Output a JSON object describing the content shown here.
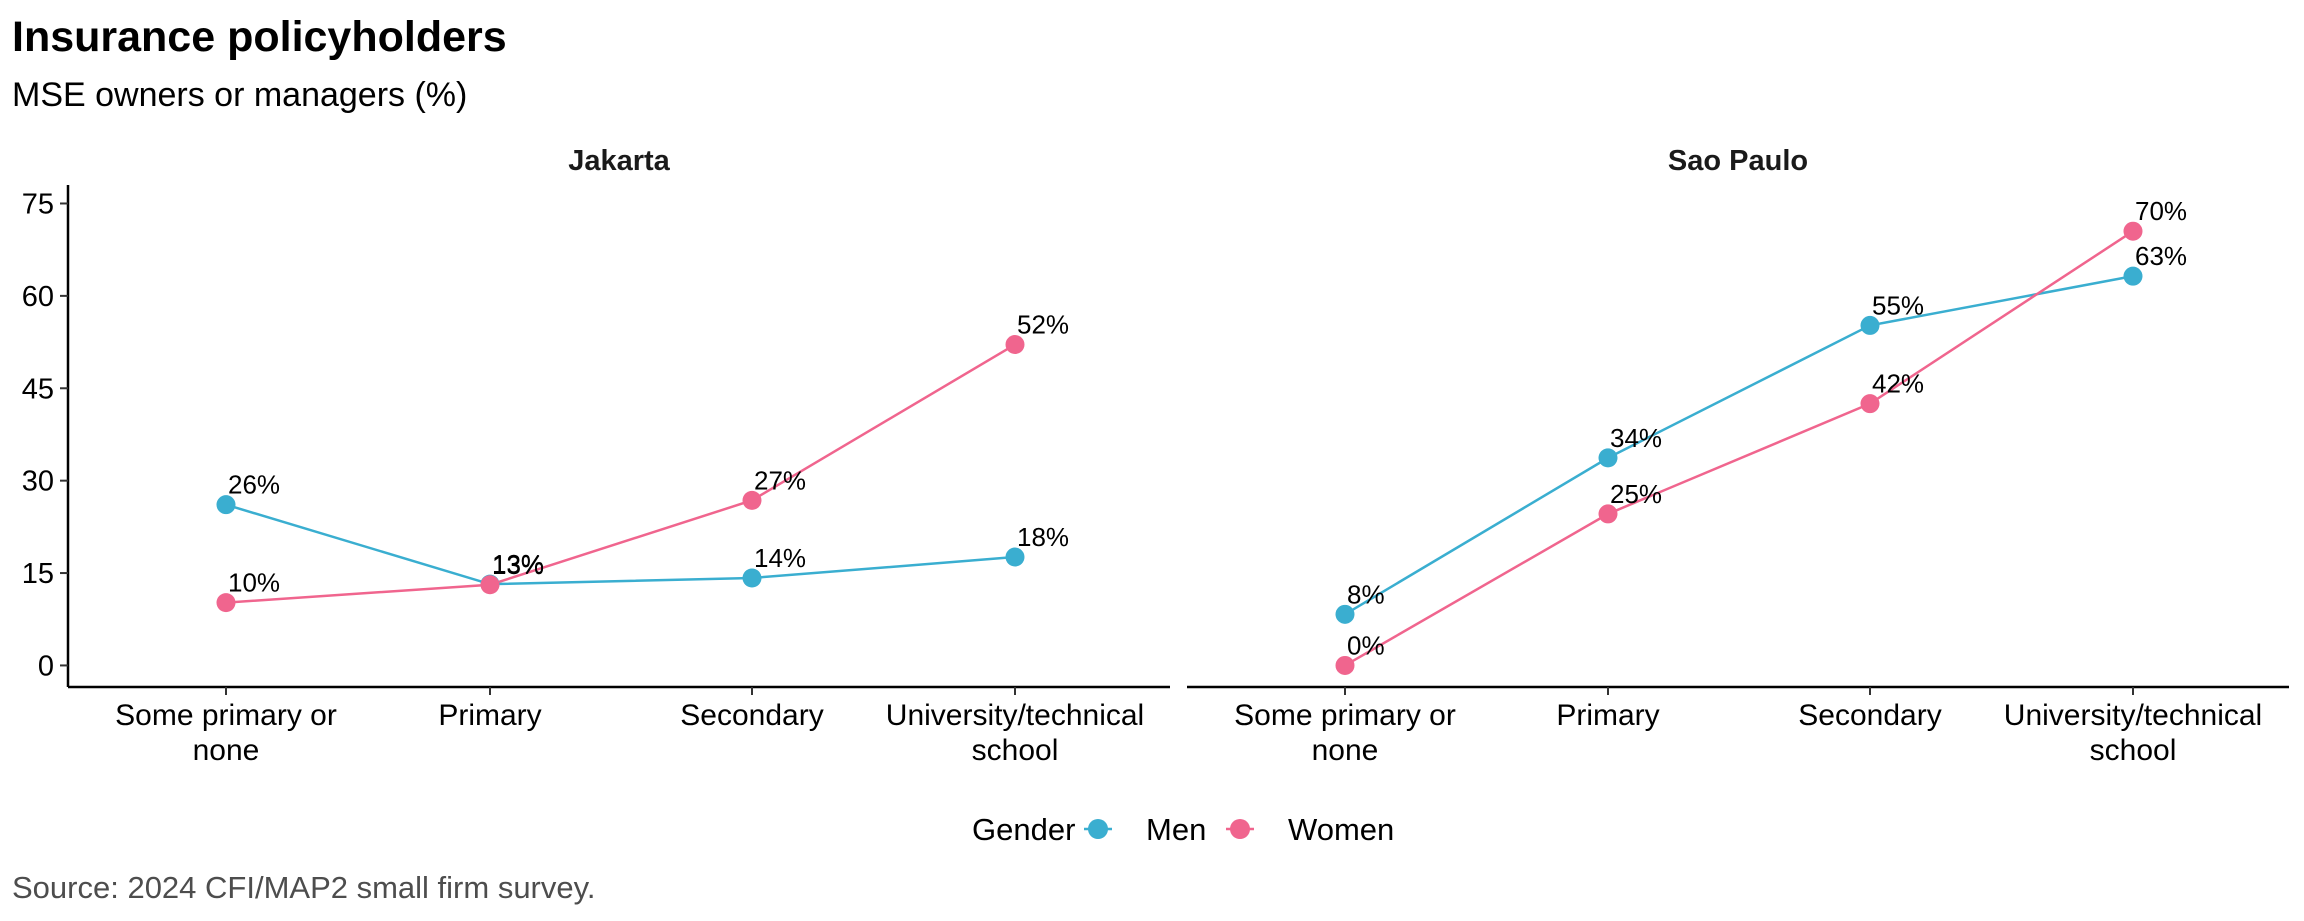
{
  "title": "Insurance policyholders",
  "subtitle": "MSE owners or managers (%)",
  "source": "Source: 2024 CFI/MAP2 small firm survey.",
  "colors": {
    "Men": "#3aaed0",
    "Women": "#f0658e"
  },
  "chart_data": {
    "type": "line",
    "categories": [
      [
        "Some primary or",
        "none"
      ],
      [
        "Primary"
      ],
      [
        "Secondary"
      ],
      [
        "University/technical",
        "school"
      ]
    ],
    "yticks": [
      "0",
      "15",
      "30",
      "45",
      "60",
      "75"
    ],
    "ytick_values": [
      0,
      15,
      30,
      45,
      60,
      75
    ],
    "ylim": [
      -3.5,
      78
    ],
    "legend": {
      "title": "Gender",
      "entries": [
        "Men",
        "Women"
      ],
      "position": "bottom"
    },
    "facets": [
      {
        "title": "Jakarta",
        "series": [
          {
            "name": "Men",
            "values": [
              26.1,
              13.2,
              14.2,
              17.6
            ],
            "labels": [
              "26%",
              "13%",
              "14%",
              "18%"
            ]
          },
          {
            "name": "Women",
            "values": [
              10.2,
              13.1,
              26.8,
              52.1
            ],
            "labels": [
              "10%",
              "13%",
              "27%",
              "52%"
            ]
          }
        ]
      },
      {
        "title": "Sao Paulo",
        "series": [
          {
            "name": "Men",
            "values": [
              8.3,
              33.7,
              55.2,
              63.2
            ],
            "labels": [
              "8%",
              "34%",
              "55%",
              "63%"
            ]
          },
          {
            "name": "Women",
            "values": [
              0.0,
              24.6,
              42.5,
              70.5
            ],
            "labels": [
              "0%",
              "25%",
              "42%",
              "70%"
            ]
          }
        ]
      }
    ]
  }
}
